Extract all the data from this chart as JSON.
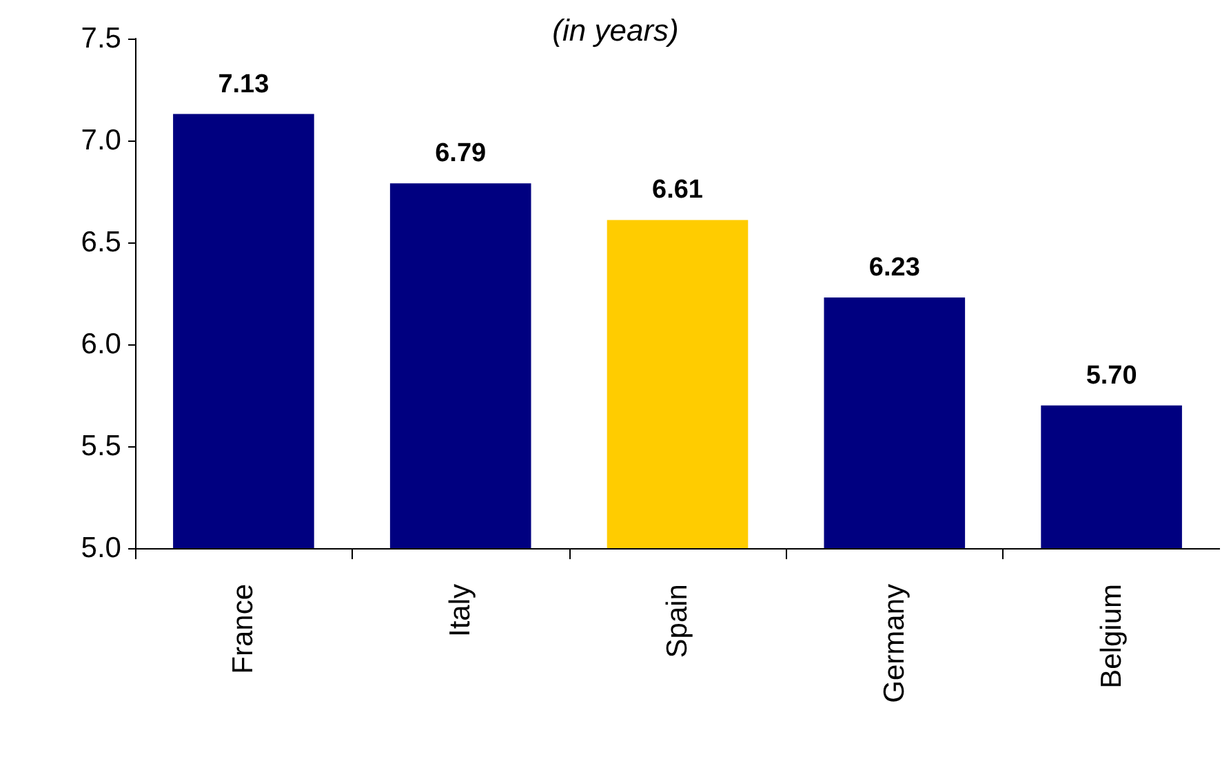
{
  "chart_data": {
    "type": "bar",
    "subtitle": "(in years)",
    "categories": [
      "France",
      "Italy",
      "Spain",
      "Germany",
      "Belgium"
    ],
    "values": [
      7.13,
      6.79,
      6.61,
      6.23,
      5.7
    ],
    "colors": [
      "#000080",
      "#000080",
      "#ffcc00",
      "#000080",
      "#000080"
    ],
    "value_labels": [
      "7.13",
      "6.79",
      "6.61",
      "6.23",
      "5.70"
    ],
    "ylim": [
      5,
      7.5
    ],
    "yticks": [
      {
        "value": 5,
        "label": "5.0"
      },
      {
        "value": 5.5,
        "label": "5.5"
      },
      {
        "value": 6,
        "label": "6.0"
      },
      {
        "value": 6.5,
        "label": "6.5"
      },
      {
        "value": 7,
        "label": "7.0"
      },
      {
        "value": 7.5,
        "label": "7.5"
      }
    ],
    "grid": false
  }
}
